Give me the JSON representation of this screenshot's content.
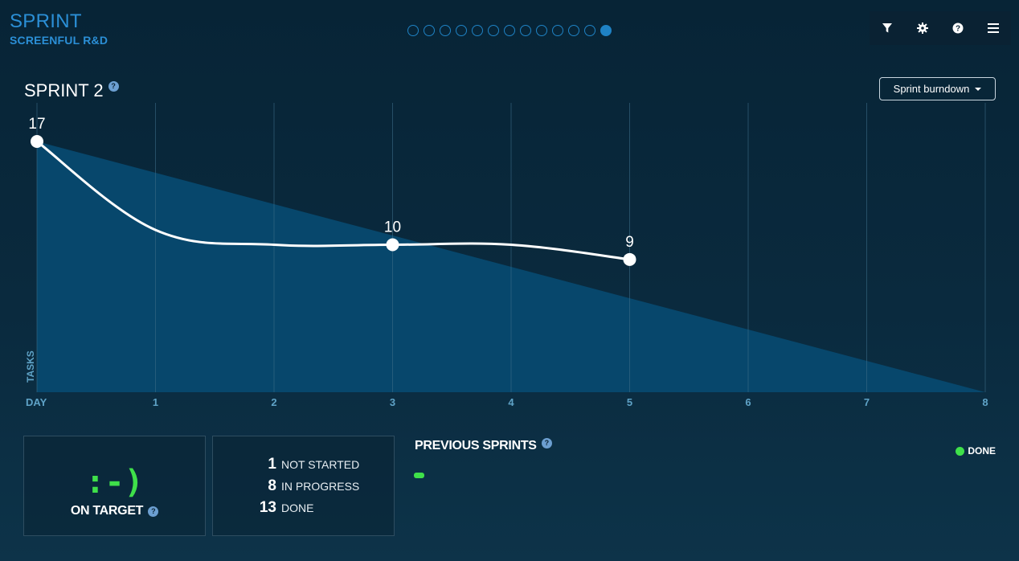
{
  "app": {
    "title": "SPRINT",
    "subtitle": "SCREENFUL R&D"
  },
  "pager": {
    "count": 13,
    "active_index": 12
  },
  "toolbar": [
    {
      "name": "filter-button",
      "icon": "filter-icon"
    },
    {
      "name": "settings-button",
      "icon": "gear-icon"
    },
    {
      "name": "help-button",
      "icon": "help-icon"
    },
    {
      "name": "menu-button",
      "icon": "menu-icon"
    }
  ],
  "sprint": {
    "title": "SPRINT 2",
    "help": "?"
  },
  "view_selector": {
    "label": "Sprint burndown"
  },
  "chart_data": {
    "type": "line",
    "ylabel": "TASKS",
    "x_ticks": [
      "DAY",
      "1",
      "2",
      "3",
      "4",
      "5",
      "6",
      "7",
      "8"
    ],
    "x_range": [
      0,
      8
    ],
    "y_range": [
      0,
      17
    ],
    "ideal_line": {
      "x": [
        0,
        8
      ],
      "y": [
        17,
        0
      ]
    },
    "actual": {
      "x": [
        0,
        1,
        2,
        3,
        4,
        5
      ],
      "y": [
        17,
        11,
        10,
        10,
        10,
        9
      ]
    },
    "points": [
      {
        "x": 0,
        "y": 17,
        "label": "17"
      },
      {
        "x": 3,
        "y": 10,
        "label": "10"
      },
      {
        "x": 5,
        "y": 9,
        "label": "9"
      }
    ],
    "colors": {
      "area": "#07476c",
      "line": "#ffffff",
      "grid": "#3a6a85",
      "tick": "#5fa3c7"
    }
  },
  "status": {
    "face": ":-)",
    "label": "ON TARGET",
    "help": "?"
  },
  "counts": [
    {
      "value": "1",
      "label": "NOT STARTED"
    },
    {
      "value": "8",
      "label": "IN PROGRESS"
    },
    {
      "value": "13",
      "label": "DONE"
    }
  ],
  "previous": {
    "title": "PREVIOUS SPRINTS",
    "help": "?",
    "legend": "DONE"
  }
}
